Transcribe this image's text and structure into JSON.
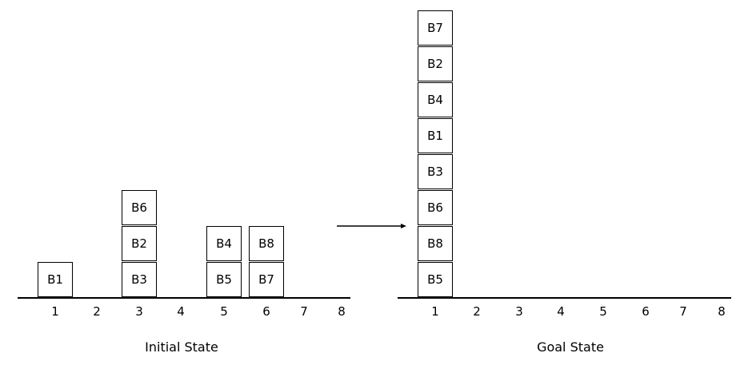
{
  "initial": {
    "caption": "Initial State",
    "positions": [
      "1",
      "2",
      "3",
      "4",
      "5",
      "6",
      "7",
      "8"
    ],
    "stacks": [
      {
        "position": 1,
        "blocks": [
          "B1"
        ]
      },
      {
        "position": 3,
        "blocks": [
          "B3",
          "B2",
          "B6"
        ]
      },
      {
        "position": 5,
        "blocks": [
          "B5",
          "B4"
        ]
      },
      {
        "position": 6,
        "blocks": [
          "B7",
          "B8"
        ]
      }
    ]
  },
  "goal": {
    "caption": "Goal State",
    "positions": [
      "1",
      "2",
      "3",
      "4",
      "5",
      "6",
      "7",
      "8"
    ],
    "stacks": [
      {
        "position": 1,
        "blocks": [
          "B5",
          "B8",
          "B6",
          "B3",
          "B1",
          "B4",
          "B2",
          "B7"
        ]
      }
    ]
  }
}
